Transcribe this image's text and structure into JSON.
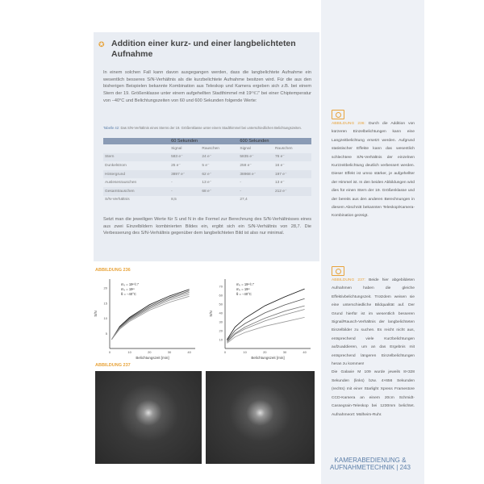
{
  "box": {
    "title": "Addition einer kurz- und einer langbelichteten Aufnahme",
    "intro": "In einem solchen Fall kann davon ausgegangen werden, dass die langbelichtete Aufnahme ein wesentlich besseres S/N-Verhältnis als die kurzbelichtete Aufnahme besitzen wird. Für die aus den bisherigen Beispielen bekannte Kombination aus Teleskop und Kamera ergeben sich z.B. bei einem Stern der 19. Größenklasse unter einem aufgehellten Stadthimmel mit 19ᵐ/□″ bei einer Chiptemperatur von −40°C und Belichtungszeiten von 60 und 600 Sekunden folgende Werte:",
    "table_caption_label": "Tabelle 42:",
    "table_caption": "Das S/N-Verhältnis eines Sterns der 19. Größenklasse unter einem Stadthimmel bei unterschiedlichen Belichtungszeiten.",
    "table": {
      "groups": [
        "60 Sekunden",
        "600 Sekunden"
      ],
      "subheaders": [
        "Signal",
        "Rauschen",
        "Signal",
        "Rauschen"
      ],
      "rows": [
        [
          "Stern",
          "583 e⁻",
          "24 e⁻",
          "5835 e⁻",
          "76 e⁻"
        ],
        [
          "Dunkelstrom",
          "25 e⁻",
          "5 e⁻",
          "258 e⁻",
          "16 e⁻"
        ],
        [
          "Hintergrund",
          "3897 e⁻",
          "62 e⁻",
          "38968 e⁻",
          "197 e⁻"
        ],
        [
          "Auslesesrauschen",
          "-",
          "13 e⁻",
          "-",
          "13 e⁻"
        ],
        [
          "Gesamtrauschen",
          "-",
          "68 e⁻",
          "-",
          "212 e⁻"
        ],
        [
          "S/N-Verhältnis",
          "8,5",
          "",
          "27,4",
          ""
        ]
      ]
    },
    "outro": "Setzt man die jeweiligen Werte für S und N in die Formel zur Berechnung des S/N-Verhältnisses eines aus zwei Einzelbildern kombinierten Bildes ein, ergibt sich ein S/N-Verhältnis von 28,7. Die Verbesserung des S/N-Verhältnis gegenüber dem langbelichteten Bild ist also nur minimal."
  },
  "sidebar": {
    "fig236_label": "ABBILDUNG 236:",
    "fig236_text": "Durch die Addition von kürzeren Einzelbelichtungen kann eine Langzeitbelichtung ersetzt werden. Aufgrund statistischer Effekte kann das wesentlich schlechtere S/N-Verhältnis der einzelnen Kurzzeitbelichtung deutlich verbessert werden. Dieser Effekt ist umso stärker, je aufgehellter der Himmel ist. In den beiden Abbildungen wird dies für einen Stern der 19. Größenklasse und der bereits aus den anderen Berechnungen in diesem Abschnitt bekannten Teleskop/Kamera-Kombination gezeigt.",
    "fig237_label": "ABBILDUNG 237:",
    "fig237_text": "Beide hier abgebildeten Aufnahmen haben die gleiche Effektivbelichtungszeit. Trotzdem weisen sie eine unterschiedliche Bildqualität auf. Der Grund hierfür ist im wesentlich besseren Signal/Rausch-Verhältnis der langbelichteten Einzelbilder zu suchen. Es reicht nicht aus, entsprechend viele Kurzbelichtungen aufzuaddieren, um an das Ergebnis mit entsprechend längeren Einzelbelichtungen heran zu kommen!",
    "fig237_text2": "Die Galaxie M 109 wurde jeweils 8×328 Sekunden (links) bzw. 4×656 Sekunden (rechts) mit einer Starlight Xpress Framestore CCD-Kamera an einem 20cm Schmidt-Cassegrain-Teleskop bei 1230mm belichtet. Aufnahmeort: Mülheim-Ruhr."
  },
  "footer": {
    "section": "KAMERABEDIENUNG & AUFNAHMETECHNIK",
    "page": "243"
  },
  "figures": {
    "fig236": "ABBILDUNG 236",
    "fig237": "ABBILDUNG 237"
  },
  "accent": "#e8a33a",
  "chart_data": [
    {
      "type": "line",
      "xlabel": "Belichtungszeit [min]",
      "ylabel": "S/N",
      "xlim": [
        0,
        43
      ],
      "ylim": [
        0,
        23
      ],
      "xticks": [
        0,
        10,
        20,
        30,
        40
      ],
      "yticks": [
        5,
        10,
        15,
        20
      ],
      "annotations": [
        "mₛ = 19ᵐ/□″",
        "mₛ = 19ᵐ",
        "θ = −40°C"
      ],
      "x": [
        1,
        5,
        10,
        20,
        30,
        40
      ],
      "series": [
        {
          "values": [
            3,
            7.3,
            10.3,
            14.5,
            17.4,
            19.6
          ]
        },
        {
          "values": [
            3,
            7.1,
            10,
            14,
            16.9,
            19.1
          ]
        },
        {
          "values": [
            3,
            6.9,
            9.7,
            13.6,
            16.5,
            18.6
          ]
        },
        {
          "values": [
            3,
            6.7,
            9.4,
            13.2,
            16,
            18
          ]
        },
        {
          "values": [
            3,
            6.4,
            9,
            12.7,
            15.3,
            17.3
          ]
        }
      ]
    },
    {
      "type": "line",
      "xlabel": "Belichtungszeit [min]",
      "ylabel": "S/N",
      "xlim": [
        0,
        43
      ],
      "ylim": [
        0,
        78
      ],
      "xticks": [
        0,
        10,
        20,
        30,
        40
      ],
      "yticks": [
        10,
        20,
        30,
        40,
        50,
        60,
        70
      ],
      "annotations": [
        "mₛ = 19ᵐ/□″",
        "mₛ = 19ᵐ",
        "θ = −40°C"
      ],
      "x": [
        1,
        5,
        10,
        20,
        30,
        40
      ],
      "series": [
        {
          "values": [
            10,
            24,
            34,
            48,
            58,
            67
          ]
        },
        {
          "values": [
            9,
            20,
            28,
            40,
            49,
            56
          ]
        },
        {
          "values": [
            8,
            17,
            24,
            34,
            42,
            48
          ]
        },
        {
          "values": [
            7,
            16,
            22,
            31,
            38,
            44
          ]
        },
        {
          "values": [
            6,
            13,
            18,
            25,
            30,
            35
          ]
        }
      ]
    }
  ]
}
